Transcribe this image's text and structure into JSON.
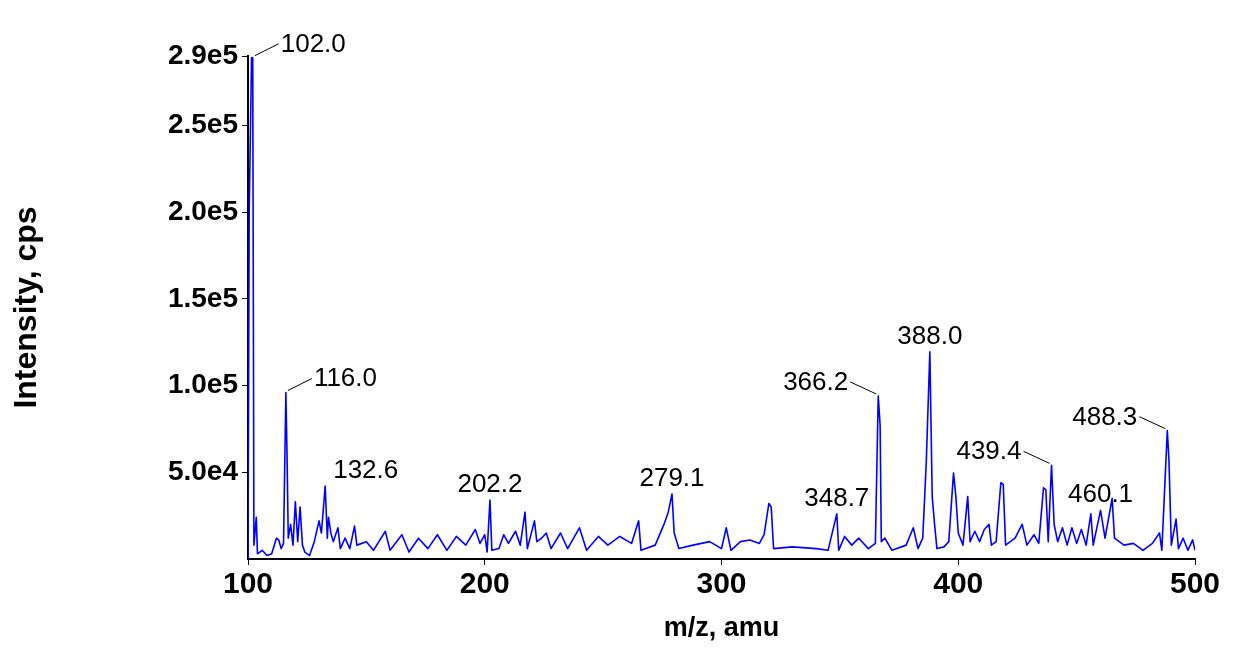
{
  "chart_data": {
    "type": "line",
    "xlabel": "m/z, amu",
    "ylabel": "Intensity, cps",
    "xlim": [
      100,
      500
    ],
    "xticks": [
      100,
      200,
      300,
      400,
      500
    ],
    "ylim": [
      0,
      290000
    ],
    "yticks": [
      {
        "value": 50000,
        "label": "5.0e4"
      },
      {
        "value": 100000,
        "label": "1.0e5"
      },
      {
        "value": 150000,
        "label": "1.5e5"
      },
      {
        "value": 200000,
        "label": "2.0e5"
      },
      {
        "value": 250000,
        "label": "2.5e5"
      },
      {
        "value": 290000,
        "label": "2.9e5"
      }
    ],
    "grid": false,
    "legend": false,
    "marker": "none",
    "line_style": "solid",
    "series": [
      {
        "color": "#0000ff",
        "x": [
          100,
          100.5,
          101.5,
          102,
          102.5,
          103.5,
          104,
          106,
          108,
          110,
          112,
          113,
          114,
          115,
          116,
          116.5,
          117,
          118,
          119,
          120,
          121,
          122,
          123,
          124,
          126,
          128,
          130,
          131,
          132.6,
          133.5,
          134,
          135,
          136,
          138,
          139,
          141,
          143,
          145,
          146,
          150,
          153,
          158,
          160,
          165,
          168,
          172,
          176,
          180,
          184,
          188,
          192,
          196,
          198,
          200,
          201,
          202.2,
          203,
          206,
          208,
          210,
          213,
          215,
          217,
          218,
          221,
          222,
          224,
          226,
          228,
          232,
          235,
          240,
          243,
          248,
          252,
          257,
          262,
          265,
          266,
          272,
          276,
          277.5,
          279.1,
          280,
          282,
          288,
          295,
          300,
          302,
          304,
          308,
          312,
          316,
          318,
          320,
          321,
          322,
          330,
          340,
          345,
          348.7,
          349.5,
          352,
          355,
          358,
          362,
          365,
          366.2,
          367,
          367.5,
          369,
          372,
          378,
          381,
          383,
          385,
          386.5,
          388,
          389,
          390,
          391,
          394,
          396,
          398,
          399,
          400,
          402,
          404,
          405,
          407,
          409,
          411,
          413,
          414,
          416,
          418,
          419,
          420,
          424,
          427,
          429,
          432,
          434,
          436,
          437,
          438,
          439.4,
          440.5,
          442,
          444,
          446,
          448,
          450,
          452,
          454,
          456,
          457,
          460.1,
          462,
          465,
          466,
          470,
          474,
          478,
          482,
          485,
          486,
          488.3,
          489,
          490,
          492,
          493,
          495,
          497,
          499,
          500
        ],
        "values": [
          0,
          200000,
          289000,
          289000,
          8000,
          24000,
          3000,
          5000,
          2000,
          3000,
          12000,
          11000,
          6000,
          9000,
          96000,
          59000,
          12000,
          20000,
          8000,
          33000,
          10000,
          30000,
          8000,
          4000,
          2000,
          10000,
          22000,
          15000,
          42000,
          12000,
          24000,
          15000,
          10000,
          18000,
          6000,
          12000,
          6000,
          19000,
          8000,
          10000,
          5000,
          16000,
          5000,
          14000,
          4000,
          12000,
          6000,
          14000,
          5000,
          13000,
          8000,
          17000,
          9000,
          14000,
          4000,
          34000,
          5000,
          6000,
          14000,
          9000,
          16000,
          8000,
          27000,
          6000,
          22000,
          10000,
          12000,
          15000,
          6000,
          15000,
          6000,
          18000,
          5000,
          13000,
          8000,
          13000,
          9000,
          22000,
          5000,
          8000,
          21000,
          27000,
          37500,
          15000,
          6000,
          8000,
          10000,
          6000,
          18000,
          5000,
          10000,
          11000,
          9000,
          14000,
          32000,
          30000,
          6000,
          7000,
          6000,
          5000,
          26000,
          5000,
          13000,
          8000,
          12000,
          6000,
          9000,
          94000,
          77000,
          10000,
          12000,
          5000,
          8000,
          18000,
          6000,
          12000,
          56000,
          119500,
          36000,
          20000,
          6000,
          7000,
          10000,
          49600,
          36000,
          15000,
          8000,
          36000,
          10000,
          16000,
          10000,
          17000,
          20000,
          8000,
          10000,
          44000,
          43000,
          8000,
          12000,
          20000,
          8000,
          14000,
          9000,
          41000,
          40000,
          10000,
          54000,
          20000,
          10000,
          18000,
          8000,
          18000,
          9000,
          17000,
          8000,
          26000,
          8000,
          28000,
          12000,
          35000,
          12000,
          8000,
          9000,
          5000,
          9000,
          15000,
          5000,
          74000,
          57000,
          8000,
          23000,
          6000,
          12000,
          5000,
          11000,
          5000
        ]
      }
    ],
    "annotations": [
      {
        "text": "102.0",
        "x": 102,
        "y": 289000
      },
      {
        "text": "116.0",
        "x": 116,
        "y": 96000
      },
      {
        "text": "132.6",
        "x": 132.6,
        "y": 42000
      },
      {
        "text": "202.2",
        "x": 202.2,
        "y": 34000
      },
      {
        "text": "279.1",
        "x": 279.1,
        "y": 37500
      },
      {
        "text": "348.7",
        "x": 348.7,
        "y": 26000
      },
      {
        "text": "366.2",
        "x": 366.2,
        "y": 94000
      },
      {
        "text": "388.0",
        "x": 388,
        "y": 119500
      },
      {
        "text": "439.4",
        "x": 439.4,
        "y": 54000
      },
      {
        "text": "460.1",
        "x": 460.1,
        "y": 28000
      },
      {
        "text": "488.3",
        "x": 488.3,
        "y": 74000
      }
    ]
  }
}
